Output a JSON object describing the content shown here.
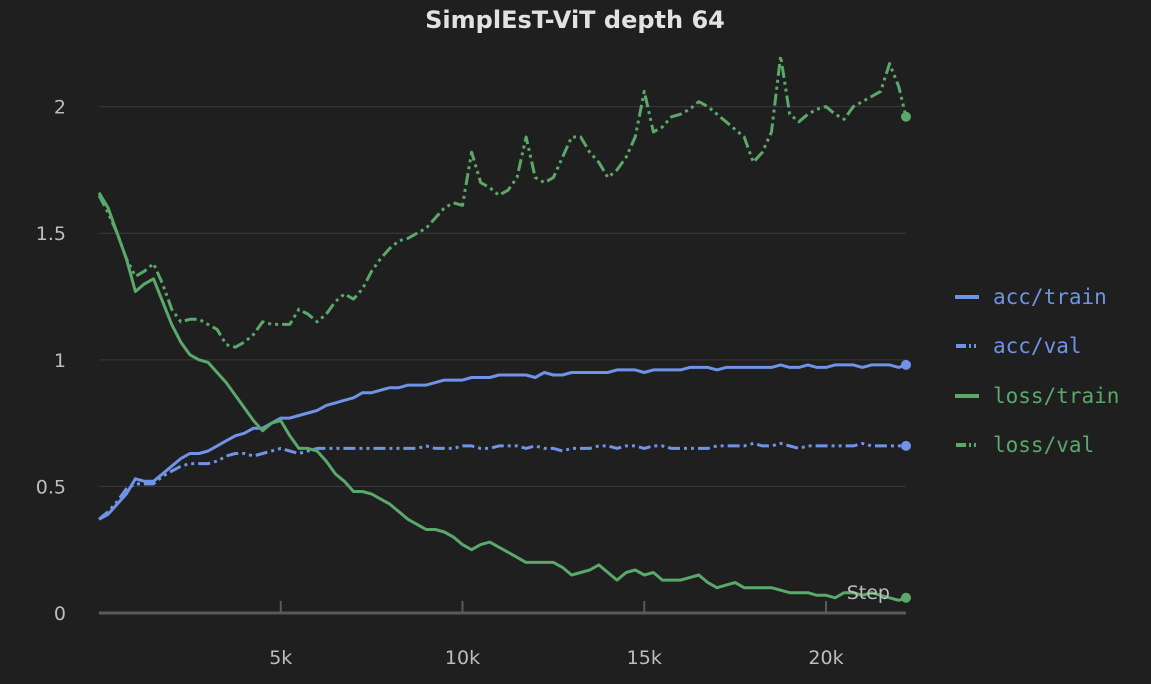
{
  "colors": {
    "background": "#1f1f1f",
    "grid": "#3a3a3a",
    "axis": "#5a5a5a",
    "text": "#bdbdbd",
    "title": "#e2e2e2",
    "acc": "#6f93e6",
    "loss": "#5aa86a"
  },
  "chart_data": {
    "type": "line",
    "title": "SimplEsT-ViT depth 64",
    "xlabel": "Step",
    "ylabel": "",
    "xlim": [
      0,
      22200
    ],
    "ylim": [
      0,
      2.2
    ],
    "x_ticks": [
      5000,
      10000,
      15000,
      20000
    ],
    "x_tick_labels": [
      "5k",
      "10k",
      "15k",
      "20k"
    ],
    "y_ticks": [
      0,
      0.5,
      1,
      1.5,
      2
    ],
    "y_tick_labels": [
      "0",
      "0.5",
      "1",
      "1.5",
      "2"
    ],
    "grid": true,
    "legend_position": "right",
    "series": [
      {
        "name": "acc/train",
        "style": "solid",
        "color": "#6f93e6",
        "x": [
          0,
          250,
          500,
          750,
          1000,
          1250,
          1500,
          1750,
          2000,
          2250,
          2500,
          2750,
          3000,
          3250,
          3500,
          3750,
          4000,
          4250,
          4500,
          4750,
          5000,
          5250,
          5500,
          5750,
          6000,
          6250,
          6500,
          6750,
          7000,
          7250,
          7500,
          7750,
          8000,
          8250,
          8500,
          8750,
          9000,
          9250,
          9500,
          9750,
          10000,
          10250,
          10500,
          10750,
          11000,
          11250,
          11500,
          11750,
          12000,
          12250,
          12500,
          12750,
          13000,
          13250,
          13500,
          13750,
          14000,
          14250,
          14500,
          14750,
          15000,
          15250,
          15500,
          15750,
          16000,
          16250,
          16500,
          16750,
          17000,
          17250,
          17500,
          17750,
          18000,
          18250,
          18500,
          18750,
          19000,
          19250,
          19500,
          19750,
          20000,
          20250,
          20500,
          20750,
          21000,
          21250,
          21500,
          21750,
          22000,
          22200
        ],
        "y": [
          0.37,
          0.39,
          0.43,
          0.47,
          0.53,
          0.52,
          0.52,
          0.55,
          0.58,
          0.61,
          0.63,
          0.63,
          0.64,
          0.66,
          0.68,
          0.7,
          0.71,
          0.73,
          0.73,
          0.75,
          0.77,
          0.77,
          0.78,
          0.79,
          0.8,
          0.82,
          0.83,
          0.84,
          0.85,
          0.87,
          0.87,
          0.88,
          0.89,
          0.89,
          0.9,
          0.9,
          0.9,
          0.91,
          0.92,
          0.92,
          0.92,
          0.93,
          0.93,
          0.93,
          0.94,
          0.94,
          0.94,
          0.94,
          0.93,
          0.95,
          0.94,
          0.94,
          0.95,
          0.95,
          0.95,
          0.95,
          0.95,
          0.96,
          0.96,
          0.96,
          0.95,
          0.96,
          0.96,
          0.96,
          0.96,
          0.97,
          0.97,
          0.97,
          0.96,
          0.97,
          0.97,
          0.97,
          0.97,
          0.97,
          0.97,
          0.98,
          0.97,
          0.97,
          0.98,
          0.97,
          0.97,
          0.98,
          0.98,
          0.98,
          0.97,
          0.98,
          0.98,
          0.98,
          0.97,
          0.98
        ]
      },
      {
        "name": "acc/val",
        "style": "dash-dot-dot",
        "color": "#6f93e6",
        "x": [
          0,
          250,
          500,
          750,
          1000,
          1250,
          1500,
          1750,
          2000,
          2250,
          2500,
          2750,
          3000,
          3250,
          3500,
          3750,
          4000,
          4250,
          4500,
          4750,
          5000,
          5250,
          5500,
          5750,
          6000,
          6250,
          6500,
          6750,
          7000,
          7250,
          7500,
          7750,
          8000,
          8250,
          8500,
          8750,
          9000,
          9250,
          9500,
          9750,
          10000,
          10250,
          10500,
          10750,
          11000,
          11250,
          11500,
          11750,
          12000,
          12250,
          12500,
          12750,
          13000,
          13250,
          13500,
          13750,
          14000,
          14250,
          14500,
          14750,
          15000,
          15250,
          15500,
          15750,
          16000,
          16250,
          16500,
          16750,
          17000,
          17250,
          17500,
          17750,
          18000,
          18250,
          18500,
          18750,
          19000,
          19250,
          19500,
          19750,
          20000,
          20250,
          20500,
          20750,
          21000,
          21250,
          21500,
          21750,
          22000,
          22200
        ],
        "y": [
          0.37,
          0.4,
          0.44,
          0.49,
          0.51,
          0.51,
          0.51,
          0.54,
          0.56,
          0.58,
          0.59,
          0.59,
          0.59,
          0.6,
          0.62,
          0.63,
          0.63,
          0.62,
          0.63,
          0.64,
          0.65,
          0.64,
          0.63,
          0.64,
          0.65,
          0.65,
          0.65,
          0.65,
          0.65,
          0.65,
          0.65,
          0.65,
          0.65,
          0.65,
          0.65,
          0.65,
          0.66,
          0.65,
          0.65,
          0.65,
          0.66,
          0.66,
          0.65,
          0.65,
          0.66,
          0.66,
          0.66,
          0.65,
          0.66,
          0.65,
          0.65,
          0.64,
          0.65,
          0.65,
          0.65,
          0.66,
          0.66,
          0.65,
          0.66,
          0.66,
          0.65,
          0.66,
          0.66,
          0.65,
          0.65,
          0.65,
          0.65,
          0.65,
          0.66,
          0.66,
          0.66,
          0.66,
          0.67,
          0.66,
          0.66,
          0.67,
          0.66,
          0.65,
          0.66,
          0.66,
          0.66,
          0.66,
          0.66,
          0.66,
          0.67,
          0.66,
          0.66,
          0.66,
          0.66,
          0.66
        ]
      },
      {
        "name": "loss/train",
        "style": "solid",
        "color": "#5aa86a",
        "x": [
          0,
          250,
          500,
          750,
          1000,
          1250,
          1500,
          1750,
          2000,
          2250,
          2500,
          2750,
          3000,
          3250,
          3500,
          3750,
          4000,
          4250,
          4500,
          4750,
          5000,
          5250,
          5500,
          5750,
          6000,
          6250,
          6500,
          6750,
          7000,
          7250,
          7500,
          7750,
          8000,
          8250,
          8500,
          8750,
          9000,
          9250,
          9500,
          9750,
          10000,
          10250,
          10500,
          10750,
          11000,
          11250,
          11500,
          11750,
          12000,
          12250,
          12500,
          12750,
          13000,
          13250,
          13500,
          13750,
          14000,
          14250,
          14500,
          14750,
          15000,
          15250,
          15500,
          15750,
          16000,
          16250,
          16500,
          16750,
          17000,
          17250,
          17500,
          17750,
          18000,
          18250,
          18500,
          18750,
          19000,
          19250,
          19500,
          19750,
          20000,
          20250,
          20500,
          20750,
          21000,
          21250,
          21500,
          21750,
          22000,
          22200
        ],
        "y": [
          1.66,
          1.6,
          1.5,
          1.4,
          1.27,
          1.3,
          1.32,
          1.23,
          1.14,
          1.07,
          1.02,
          1.0,
          0.99,
          0.95,
          0.91,
          0.86,
          0.81,
          0.76,
          0.72,
          0.75,
          0.76,
          0.7,
          0.65,
          0.65,
          0.64,
          0.6,
          0.55,
          0.52,
          0.48,
          0.48,
          0.47,
          0.45,
          0.43,
          0.4,
          0.37,
          0.35,
          0.33,
          0.33,
          0.32,
          0.3,
          0.27,
          0.25,
          0.27,
          0.28,
          0.26,
          0.24,
          0.22,
          0.2,
          0.2,
          0.2,
          0.2,
          0.18,
          0.15,
          0.16,
          0.17,
          0.19,
          0.16,
          0.13,
          0.16,
          0.17,
          0.15,
          0.16,
          0.13,
          0.13,
          0.13,
          0.14,
          0.15,
          0.12,
          0.1,
          0.11,
          0.12,
          0.1,
          0.1,
          0.1,
          0.1,
          0.09,
          0.08,
          0.08,
          0.08,
          0.07,
          0.07,
          0.06,
          0.08,
          0.08,
          0.07,
          0.08,
          0.07,
          0.06,
          0.05,
          0.06
        ]
      },
      {
        "name": "loss/val",
        "style": "dash-dot-dot",
        "color": "#5aa86a",
        "x": [
          0,
          250,
          500,
          750,
          1000,
          1250,
          1500,
          1750,
          2000,
          2250,
          2500,
          2750,
          3000,
          3250,
          3500,
          3750,
          4000,
          4250,
          4500,
          4750,
          5000,
          5250,
          5500,
          5750,
          6000,
          6250,
          6500,
          6750,
          7000,
          7250,
          7500,
          7750,
          8000,
          8250,
          8500,
          8750,
          9000,
          9250,
          9500,
          9750,
          10000,
          10250,
          10500,
          10750,
          11000,
          11250,
          11500,
          11750,
          12000,
          12250,
          12500,
          12750,
          13000,
          13250,
          13500,
          13750,
          14000,
          14250,
          14500,
          14750,
          15000,
          15250,
          15500,
          15750,
          16000,
          16250,
          16500,
          16750,
          17000,
          17250,
          17500,
          17750,
          18000,
          18250,
          18500,
          18750,
          19000,
          19250,
          19500,
          19750,
          20000,
          20250,
          20500,
          20750,
          21000,
          21250,
          21500,
          21750,
          22000,
          22200
        ],
        "y": [
          1.65,
          1.58,
          1.5,
          1.4,
          1.33,
          1.35,
          1.38,
          1.3,
          1.2,
          1.15,
          1.16,
          1.16,
          1.14,
          1.12,
          1.06,
          1.05,
          1.07,
          1.1,
          1.15,
          1.14,
          1.14,
          1.14,
          1.2,
          1.18,
          1.15,
          1.18,
          1.23,
          1.26,
          1.24,
          1.28,
          1.35,
          1.4,
          1.44,
          1.47,
          1.48,
          1.5,
          1.52,
          1.56,
          1.6,
          1.62,
          1.61,
          1.82,
          1.7,
          1.68,
          1.65,
          1.67,
          1.72,
          1.88,
          1.72,
          1.7,
          1.72,
          1.8,
          1.88,
          1.88,
          1.82,
          1.78,
          1.72,
          1.75,
          1.8,
          1.88,
          2.06,
          1.9,
          1.92,
          1.96,
          1.97,
          1.99,
          2.02,
          2.0,
          1.97,
          1.94,
          1.91,
          1.88,
          1.78,
          1.82,
          1.9,
          2.2,
          1.97,
          1.94,
          1.97,
          1.99,
          2.0,
          1.97,
          1.95,
          2.0,
          2.02,
          2.04,
          2.06,
          2.17,
          2.08,
          1.96
        ]
      }
    ]
  }
}
